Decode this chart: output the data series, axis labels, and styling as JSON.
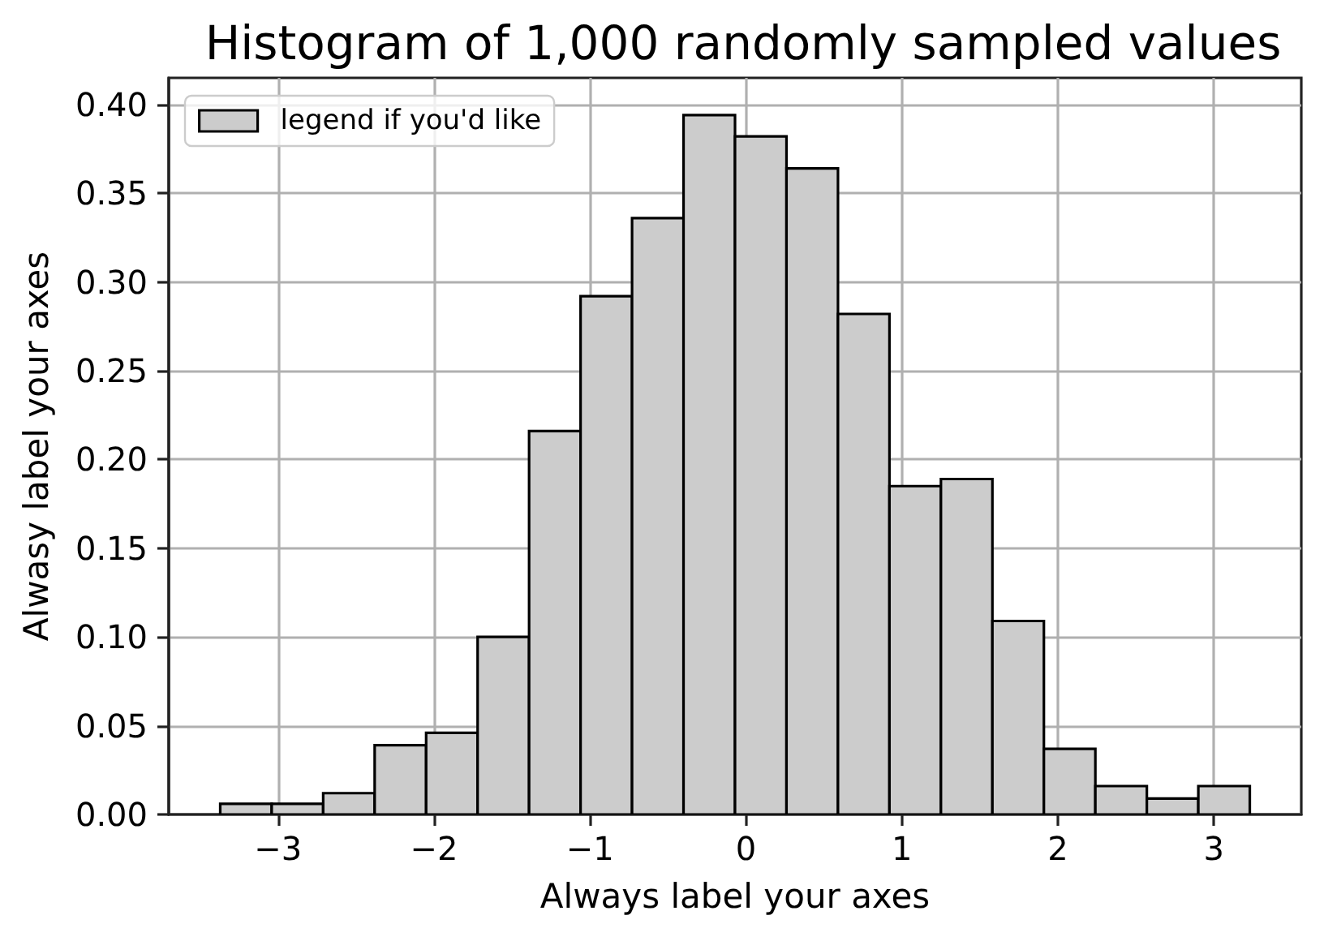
{
  "chart_data": {
    "type": "histogram",
    "title": "Histogram of 1,000 randomly sampled values",
    "xlabel": "Always label your axes",
    "ylabel": "Alwasy label your axes",
    "bins": [
      -3.37,
      -3.04,
      -2.71,
      -2.38,
      -2.05,
      -1.72,
      -1.39,
      -1.06,
      -0.73,
      -0.4,
      -0.07,
      0.26,
      0.59,
      0.92,
      1.25,
      1.58,
      1.91,
      2.24,
      2.57,
      2.9,
      3.23
    ],
    "series": [
      {
        "name": "legend if you'd like",
        "color": "#cccccc",
        "values": [
          0.006,
          0.006,
          0.012,
          0.039,
          0.046,
          0.1,
          0.216,
          0.292,
          0.336,
          0.394,
          0.382,
          0.364,
          0.282,
          0.185,
          0.189,
          0.109,
          0.037,
          0.016,
          0.009,
          0.016
        ]
      }
    ],
    "xlim": [
      -3.7,
      3.56
    ],
    "ylim": [
      0,
      0.415
    ],
    "xticks": [
      {
        "value": -3,
        "label": "−3"
      },
      {
        "value": -2,
        "label": "−2"
      },
      {
        "value": -1,
        "label": "−1"
      },
      0,
      1,
      2,
      3
    ],
    "yticks": [
      {
        "value": 0,
        "label": "0.00"
      },
      0.05,
      {
        "value": 0.1,
        "label": "0.10"
      },
      0.15,
      {
        "value": 0.2,
        "label": "0.20"
      },
      0.25,
      {
        "value": 0.3,
        "label": "0.30"
      },
      0.35,
      {
        "value": 0.4,
        "label": "0.40"
      }
    ],
    "grid": true,
    "legend": "top left"
  }
}
